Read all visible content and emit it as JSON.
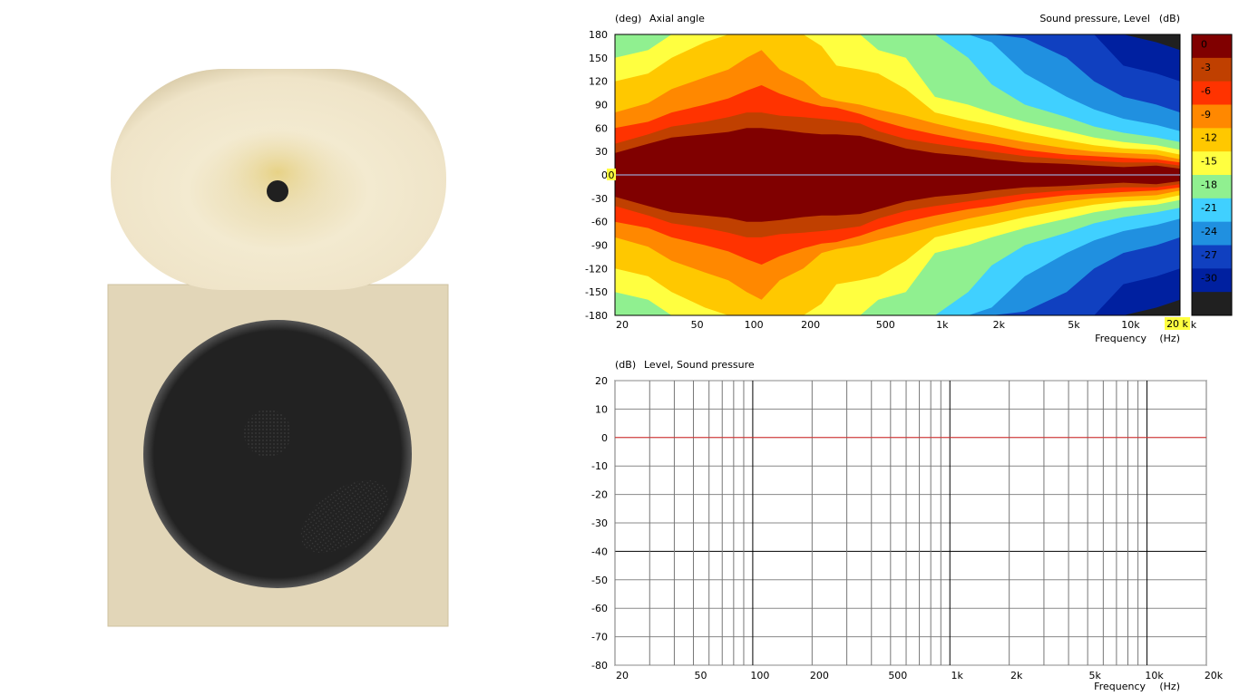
{
  "chart_data": [
    {
      "type": "heatmap",
      "y_unit_label": "(deg)",
      "y_title": "Axial angle",
      "colorbar_title": "Sound pressure, Level",
      "colorbar_unit": "(dB)",
      "x_title": "Frequency",
      "x_unit": "(Hz)",
      "y_ticks": [
        "180",
        "150",
        "120",
        "90",
        "60",
        "30",
        "0",
        "-30",
        "-60",
        "-90",
        "-120",
        "-150",
        "-180"
      ],
      "y_tick_values": [
        180,
        150,
        120,
        90,
        60,
        30,
        0,
        -30,
        -60,
        -90,
        -120,
        -150,
        -180
      ],
      "x_ticks": [
        "20",
        "50",
        "100",
        "200",
        "500",
        "1k",
        "2k",
        "5k",
        "10k",
        "20k"
      ],
      "x_tick_values": [
        20,
        50,
        100,
        200,
        500,
        1000,
        2000,
        5000,
        10000,
        20000
      ],
      "xlim": [
        20,
        20000
      ],
      "ylim": [
        -180,
        180
      ],
      "x_scale": "log",
      "colorbar_ticks": [
        "0",
        "-3",
        "-6",
        "-9",
        "-12",
        "-15",
        "-18",
        "-21",
        "-24",
        "-27",
        "-30"
      ],
      "colorbar_levels": [
        0,
        -3,
        -6,
        -9,
        -12,
        -15,
        -18,
        -21,
        -24,
        -27,
        -30,
        -33
      ],
      "colorbar_colors": [
        "#800000",
        "#c04000",
        "#ff3300",
        "#ff8800",
        "#ffc800",
        "#ffff40",
        "#90f090",
        "#40d0ff",
        "#2090e0",
        "#1040c0",
        "#0020a0",
        "#202020"
      ],
      "marker_angle_label": "0",
      "marker_freq_label": "20 k",
      "freq_points": [
        20,
        30,
        40,
        60,
        80,
        100,
        120,
        150,
        200,
        250,
        300,
        400,
        500,
        700,
        1000,
        1500,
        2000,
        3000,
        5000,
        7000,
        10000,
        15000,
        20000
      ],
      "contour_angles": [
        {
          "level": -3,
          "angles": [
            28,
            40,
            48,
            52,
            55,
            60,
            60,
            58,
            54,
            52,
            52,
            50,
            44,
            34,
            28,
            24,
            20,
            16,
            14,
            12,
            10,
            12,
            8
          ]
        },
        {
          "level": -6,
          "angles": [
            40,
            52,
            62,
            68,
            74,
            80,
            80,
            76,
            74,
            72,
            70,
            66,
            56,
            46,
            40,
            34,
            30,
            24,
            20,
            18,
            16,
            16,
            12
          ]
        },
        {
          "level": -9,
          "angles": [
            60,
            68,
            80,
            90,
            98,
            108,
            115,
            104,
            94,
            88,
            86,
            78,
            70,
            60,
            52,
            44,
            40,
            32,
            26,
            24,
            22,
            20,
            16
          ]
        },
        {
          "level": -12,
          "angles": [
            80,
            92,
            110,
            125,
            135,
            150,
            160,
            135,
            120,
            100,
            95,
            90,
            84,
            76,
            66,
            56,
            50,
            42,
            34,
            30,
            28,
            26,
            20
          ]
        },
        {
          "level": -15,
          "angles": [
            120,
            130,
            150,
            170,
            181,
            181,
            181,
            181,
            181,
            165,
            140,
            135,
            130,
            110,
            80,
            70,
            64,
            54,
            44,
            38,
            34,
            32,
            26
          ]
        },
        {
          "level": -18,
          "angles": [
            150,
            160,
            181,
            181,
            181,
            181,
            181,
            181,
            181,
            181,
            181,
            181,
            160,
            150,
            100,
            90,
            80,
            68,
            56,
            48,
            42,
            38,
            32
          ]
        },
        {
          "level": -21,
          "angles": [
            181,
            181,
            181,
            181,
            181,
            181,
            181,
            181,
            181,
            181,
            181,
            181,
            181,
            181,
            181,
            150,
            116,
            90,
            74,
            62,
            54,
            48,
            42
          ]
        },
        {
          "level": -24,
          "angles": [
            181,
            181,
            181,
            181,
            181,
            181,
            181,
            181,
            181,
            181,
            181,
            181,
            181,
            181,
            181,
            181,
            170,
            130,
            100,
            84,
            72,
            64,
            56
          ]
        },
        {
          "level": -27,
          "angles": [
            181,
            181,
            181,
            181,
            181,
            181,
            181,
            181,
            181,
            181,
            181,
            181,
            181,
            181,
            181,
            181,
            181,
            175,
            150,
            120,
            100,
            90,
            80
          ]
        },
        {
          "level": -30,
          "angles": [
            181,
            181,
            181,
            181,
            181,
            181,
            181,
            181,
            181,
            181,
            181,
            181,
            181,
            181,
            181,
            181,
            181,
            181,
            181,
            181,
            140,
            130,
            120
          ]
        },
        {
          "level": -33,
          "angles": [
            181,
            181,
            181,
            181,
            181,
            181,
            181,
            181,
            181,
            181,
            181,
            181,
            181,
            181,
            181,
            181,
            181,
            181,
            181,
            181,
            181,
            170,
            160
          ]
        }
      ]
    },
    {
      "type": "line",
      "y_unit_label": "(dB)",
      "y_title": "Level, Sound pressure",
      "x_title": "Frequency",
      "x_unit": "(Hz)",
      "y_ticks": [
        "20",
        "10",
        "0",
        "-10",
        "-20",
        "-30",
        "-40",
        "-50",
        "-60",
        "-70",
        "-80"
      ],
      "y_tick_values": [
        20,
        10,
        0,
        -10,
        -20,
        -30,
        -40,
        -50,
        -60,
        -70,
        -80
      ],
      "x_ticks": [
        "20",
        "50",
        "100",
        "200",
        "500",
        "1k",
        "2k",
        "5k",
        "10k",
        "20k"
      ],
      "x_tick_values": [
        20,
        50,
        100,
        200,
        500,
        1000,
        2000,
        5000,
        10000,
        20000
      ],
      "xlim": [
        20,
        20000
      ],
      "ylim": [
        -80,
        20
      ],
      "x_scale": "log",
      "grid": true,
      "series": [
        {
          "x": [
            20,
            20000
          ],
          "values": [
            0,
            0
          ],
          "color": "#e03030"
        }
      ]
    }
  ],
  "speaker": {
    "horn_color": "#f2e8cc",
    "cabinet_color": "#e2d6b8",
    "driver_color": "#202020"
  }
}
